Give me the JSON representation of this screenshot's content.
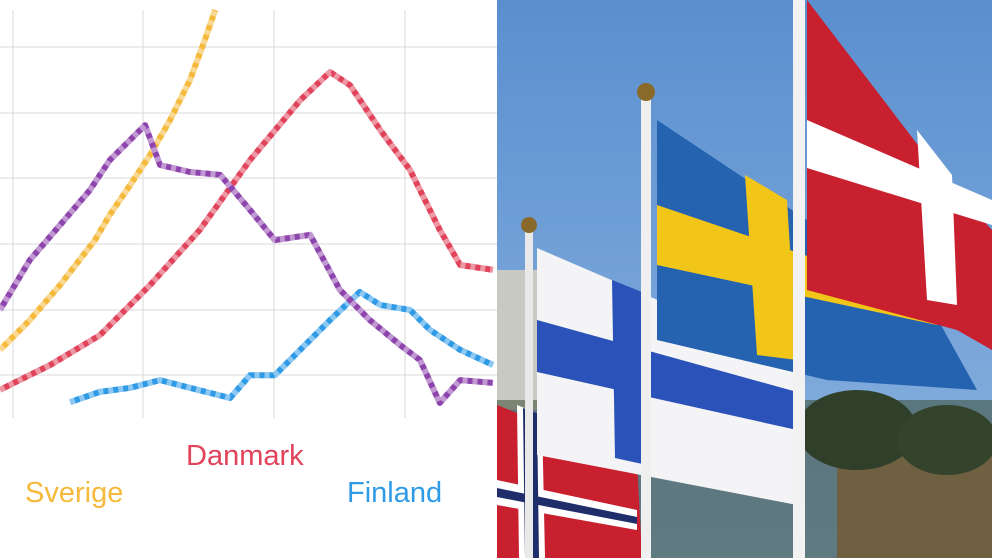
{
  "chart_data": {
    "type": "line",
    "xlim": [
      0,
      100
    ],
    "ylim": [
      0,
      100
    ],
    "series": [
      {
        "name": "Sverige",
        "color": "#f5b93b",
        "x": [
          0,
          6,
          12.1,
          19.1,
          22.1,
          26.2,
          30.2,
          34.2,
          38.2,
          41.2,
          43.3
        ],
        "values": [
          16.7,
          24,
          32.6,
          43.6,
          49.8,
          57.1,
          64.5,
          73,
          82.8,
          92.6,
          100
        ]
      },
      {
        "name": "Danmark",
        "color": "#e0435a",
        "x": [
          0,
          10.1,
          20.1,
          30.2,
          40.2,
          50.3,
          60.4,
          66.4,
          70.4,
          76.5,
          82.5,
          88.5,
          92.6,
          99.2
        ],
        "values": [
          6.9,
          13,
          20.3,
          32.6,
          46.1,
          63.2,
          77.9,
          84.8,
          81.6,
          70.6,
          60.8,
          46.1,
          37.5,
          36.3
        ]
      },
      {
        "name": "Finland",
        "color": "#2f9be6",
        "x": [
          14.1,
          20.1,
          26.2,
          32.2,
          38.2,
          46.3,
          50.3,
          55.3,
          60.4,
          66.4,
          72.4,
          76.5,
          82.5,
          86.5,
          92.6,
          99.2
        ],
        "values": [
          3.9,
          6.4,
          7.4,
          9.3,
          7.4,
          4.9,
          10.5,
          10.5,
          16.7,
          24,
          30.9,
          27.7,
          26.5,
          21.6,
          16.7,
          13
        ]
      },
      {
        "color": "#8e44ad",
        "x": [
          0,
          6,
          12.1,
          18.1,
          22.1,
          29.2,
          32.2,
          38.2,
          44.3,
          50.3,
          55.3,
          62.4,
          68.4,
          74.4,
          80.5,
          84.5,
          88.5,
          92.6,
          99.2
        ],
        "values": [
          26.5,
          38.7,
          47.3,
          55.9,
          63.2,
          71.8,
          62,
          60.3,
          59.6,
          51,
          43.6,
          44.9,
          31.4,
          24,
          17.9,
          14.2,
          3.7,
          9.3,
          8.6
        ]
      }
    ]
  }
}
